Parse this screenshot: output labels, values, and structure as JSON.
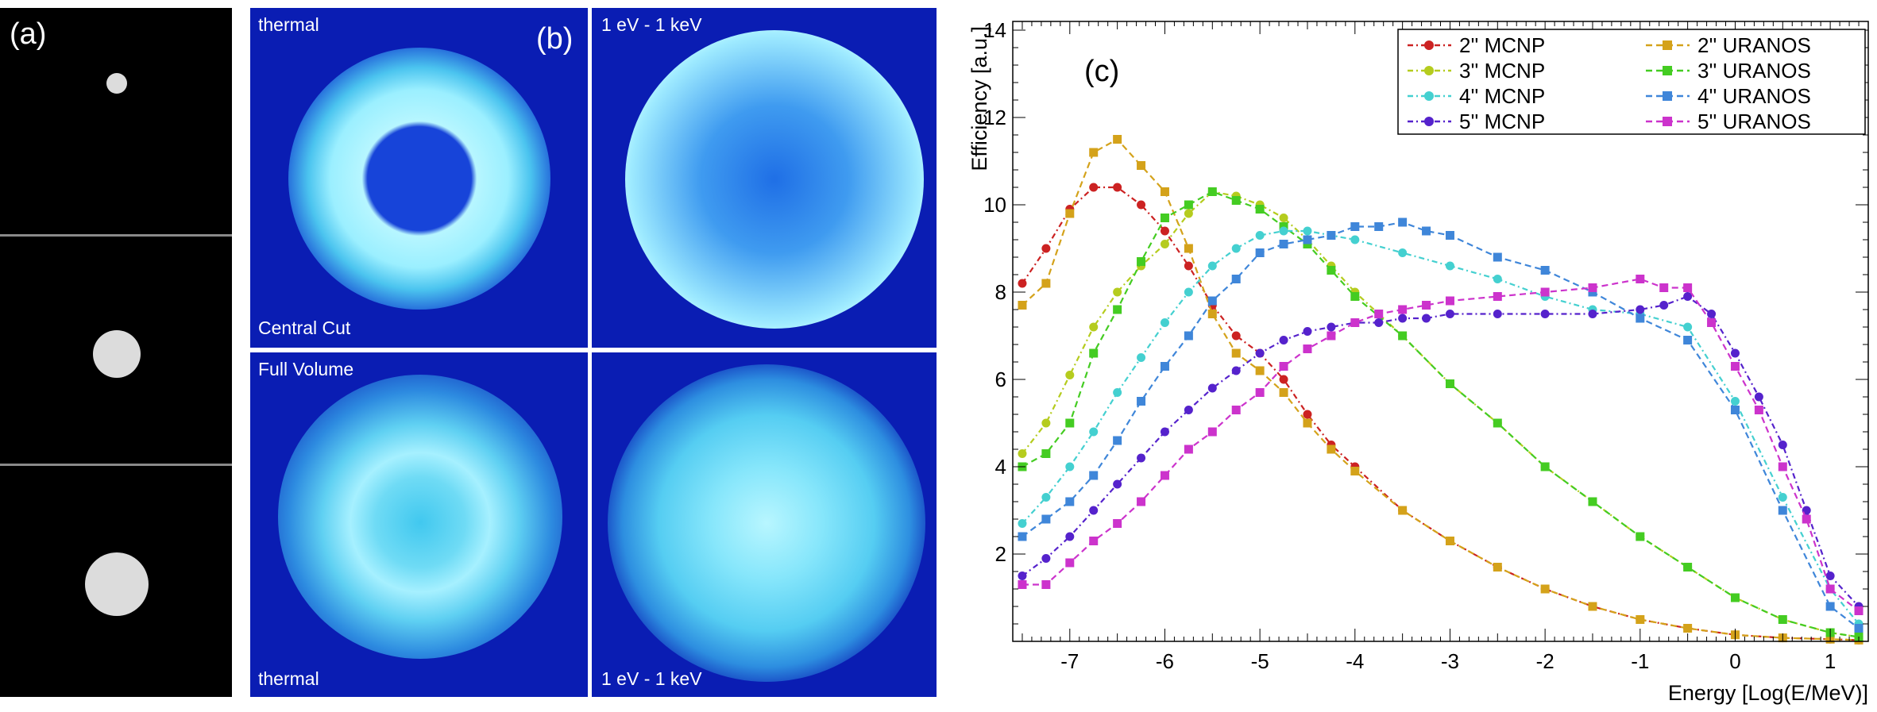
{
  "panel_a": {
    "label": "(a)"
  },
  "panel_b": {
    "label": "(b)",
    "tiles": {
      "top_left_top": "thermal",
      "top_left_bottom": "Central Cut",
      "top_right_top": "1 eV - 1 keV",
      "bottom_left_top": "Full Volume",
      "bottom_left_bottom": "thermal",
      "bottom_right_bottom": "1 eV - 1 keV"
    }
  },
  "chart_data": {
    "type": "line",
    "panel_label": "(c)",
    "xlabel": "Energy [Log(E/MeV)]",
    "ylabel": "Efficiency [a.u.]",
    "xlim": [
      -7.6,
      1.4
    ],
    "ylim": [
      0,
      14.2
    ],
    "xticks": [
      -7,
      -6,
      -5,
      -4,
      -3,
      -2,
      -1,
      0,
      1
    ],
    "yticks": [
      2,
      4,
      6,
      8,
      10,
      12,
      14
    ],
    "legend_position": "top-right",
    "series": [
      {
        "name": "2'' MCNP",
        "color": "#cc2222",
        "marker": "circle",
        "dash": "dashdot",
        "x": [
          -7.5,
          -7.25,
          -7,
          -6.75,
          -6.5,
          -6.25,
          -6,
          -5.75,
          -5.5,
          -5.25,
          -5,
          -4.75,
          -4.5,
          -4.25,
          -4,
          -3.5,
          -3,
          -2.5,
          -2,
          -1.5,
          -1,
          -0.5,
          0,
          0.5,
          1,
          1.3
        ],
        "y": [
          8.2,
          9.0,
          9.9,
          10.4,
          10.4,
          10.0,
          9.4,
          8.6,
          7.7,
          7.0,
          6.6,
          6.0,
          5.2,
          4.5,
          4.0,
          3.0,
          2.3,
          1.7,
          1.2,
          0.8,
          0.5,
          0.3,
          0.15,
          0.08,
          0.05,
          0.03
        ]
      },
      {
        "name": "2'' URANOS",
        "color": "#d4a21a",
        "marker": "square",
        "dash": "dashed",
        "x": [
          -7.5,
          -7.25,
          -7,
          -6.75,
          -6.5,
          -6.25,
          -6,
          -5.75,
          -5.5,
          -5.25,
          -5,
          -4.75,
          -4.5,
          -4.25,
          -4,
          -3.5,
          -3,
          -2.5,
          -2,
          -1.5,
          -1,
          -0.5,
          0,
          0.5,
          1,
          1.3
        ],
        "y": [
          7.7,
          8.2,
          9.8,
          11.2,
          11.5,
          10.9,
          10.3,
          9.0,
          7.5,
          6.6,
          6.2,
          5.7,
          5.0,
          4.4,
          3.9,
          3.0,
          2.3,
          1.7,
          1.2,
          0.8,
          0.5,
          0.3,
          0.15,
          0.08,
          0.05,
          0.03
        ]
      },
      {
        "name": "3'' MCNP",
        "color": "#b5cc1e",
        "marker": "circle",
        "dash": "dashdot",
        "x": [
          -7.5,
          -7.25,
          -7,
          -6.75,
          -6.5,
          -6.25,
          -6,
          -5.75,
          -5.5,
          -5.25,
          -5,
          -4.75,
          -4.5,
          -4.25,
          -4,
          -3.5,
          -3,
          -2.5,
          -2,
          -1.5,
          -1,
          -0.5,
          0,
          0.5,
          1,
          1.3
        ],
        "y": [
          4.3,
          5.0,
          6.1,
          7.2,
          8.0,
          8.6,
          9.1,
          9.8,
          10.3,
          10.2,
          10.0,
          9.7,
          9.2,
          8.6,
          8.0,
          7.0,
          5.9,
          5.0,
          4.0,
          3.2,
          2.4,
          1.7,
          1.0,
          0.5,
          0.2,
          0.1
        ]
      },
      {
        "name": "3'' URANOS",
        "color": "#44cc22",
        "marker": "square",
        "dash": "dashed",
        "x": [
          -7.5,
          -7.25,
          -7,
          -6.75,
          -6.5,
          -6.25,
          -6,
          -5.75,
          -5.5,
          -5.25,
          -5,
          -4.75,
          -4.5,
          -4.25,
          -4,
          -3.5,
          -3,
          -2.5,
          -2,
          -1.5,
          -1,
          -0.5,
          0,
          0.5,
          1,
          1.3
        ],
        "y": [
          4.0,
          4.3,
          5.0,
          6.6,
          7.6,
          8.7,
          9.7,
          10.0,
          10.3,
          10.1,
          9.9,
          9.5,
          9.1,
          8.5,
          7.9,
          7.0,
          5.9,
          5.0,
          4.0,
          3.2,
          2.4,
          1.7,
          1.0,
          0.5,
          0.2,
          0.1
        ]
      },
      {
        "name": "4'' MCNP",
        "color": "#44d0d0",
        "marker": "circle",
        "dash": "dashdot",
        "x": [
          -7.5,
          -7.25,
          -7,
          -6.75,
          -6.5,
          -6.25,
          -6,
          -5.75,
          -5.5,
          -5.25,
          -5,
          -4.75,
          -4.5,
          -4.25,
          -4,
          -3.5,
          -3,
          -2.5,
          -2,
          -1.5,
          -1,
          -0.5,
          0,
          0.5,
          1,
          1.3
        ],
        "y": [
          2.7,
          3.3,
          4.0,
          4.8,
          5.7,
          6.5,
          7.3,
          8.0,
          8.6,
          9.0,
          9.3,
          9.4,
          9.4,
          9.3,
          9.2,
          8.9,
          8.6,
          8.3,
          7.9,
          7.6,
          7.5,
          7.2,
          5.5,
          3.3,
          1.2,
          0.4
        ]
      },
      {
        "name": "4'' URANOS",
        "color": "#3f86d9",
        "marker": "square",
        "dash": "dashed",
        "x": [
          -7.5,
          -7.25,
          -7,
          -6.75,
          -6.5,
          -6.25,
          -6,
          -5.75,
          -5.5,
          -5.25,
          -5,
          -4.75,
          -4.5,
          -4.25,
          -4,
          -3.75,
          -3.5,
          -3.25,
          -3,
          -2.5,
          -2,
          -1.5,
          -1,
          -0.5,
          0,
          0.5,
          1,
          1.3
        ],
        "y": [
          2.4,
          2.8,
          3.2,
          3.8,
          4.6,
          5.5,
          6.3,
          7.0,
          7.8,
          8.3,
          8.9,
          9.1,
          9.2,
          9.3,
          9.5,
          9.5,
          9.6,
          9.4,
          9.3,
          8.8,
          8.5,
          8.0,
          7.4,
          6.9,
          5.3,
          3.0,
          0.8,
          0.3
        ]
      },
      {
        "name": "5'' MCNP",
        "color": "#5522cc",
        "marker": "circle",
        "dash": "dashdot",
        "x": [
          -7.5,
          -7.25,
          -7,
          -6.75,
          -6.5,
          -6.25,
          -6,
          -5.75,
          -5.5,
          -5.25,
          -5,
          -4.75,
          -4.5,
          -4.25,
          -4,
          -3.75,
          -3.5,
          -3.25,
          -3,
          -2.5,
          -2,
          -1.5,
          -1,
          -0.75,
          -0.5,
          -0.25,
          0,
          0.25,
          0.5,
          0.75,
          1,
          1.3
        ],
        "y": [
          1.5,
          1.9,
          2.4,
          3.0,
          3.6,
          4.2,
          4.8,
          5.3,
          5.8,
          6.2,
          6.6,
          6.9,
          7.1,
          7.2,
          7.3,
          7.3,
          7.4,
          7.4,
          7.5,
          7.5,
          7.5,
          7.5,
          7.6,
          7.7,
          7.9,
          7.5,
          6.6,
          5.6,
          4.5,
          3.0,
          1.5,
          0.8
        ]
      },
      {
        "name": "5'' URANOS",
        "color": "#cc33cc",
        "marker": "square",
        "dash": "dashed",
        "x": [
          -7.5,
          -7.25,
          -7,
          -6.75,
          -6.5,
          -6.25,
          -6,
          -5.75,
          -5.5,
          -5.25,
          -5,
          -4.75,
          -4.5,
          -4.25,
          -4,
          -3.75,
          -3.5,
          -3.25,
          -3,
          -2.5,
          -2,
          -1.5,
          -1,
          -0.75,
          -0.5,
          -0.25,
          0,
          0.25,
          0.5,
          0.75,
          1,
          1.3
        ],
        "y": [
          1.3,
          1.3,
          1.8,
          2.3,
          2.7,
          3.2,
          3.8,
          4.4,
          4.8,
          5.3,
          5.7,
          6.3,
          6.7,
          7.0,
          7.3,
          7.5,
          7.6,
          7.7,
          7.8,
          7.9,
          8.0,
          8.1,
          8.3,
          8.1,
          8.1,
          7.3,
          6.3,
          5.3,
          4.0,
          2.8,
          1.2,
          0.7
        ]
      }
    ]
  }
}
